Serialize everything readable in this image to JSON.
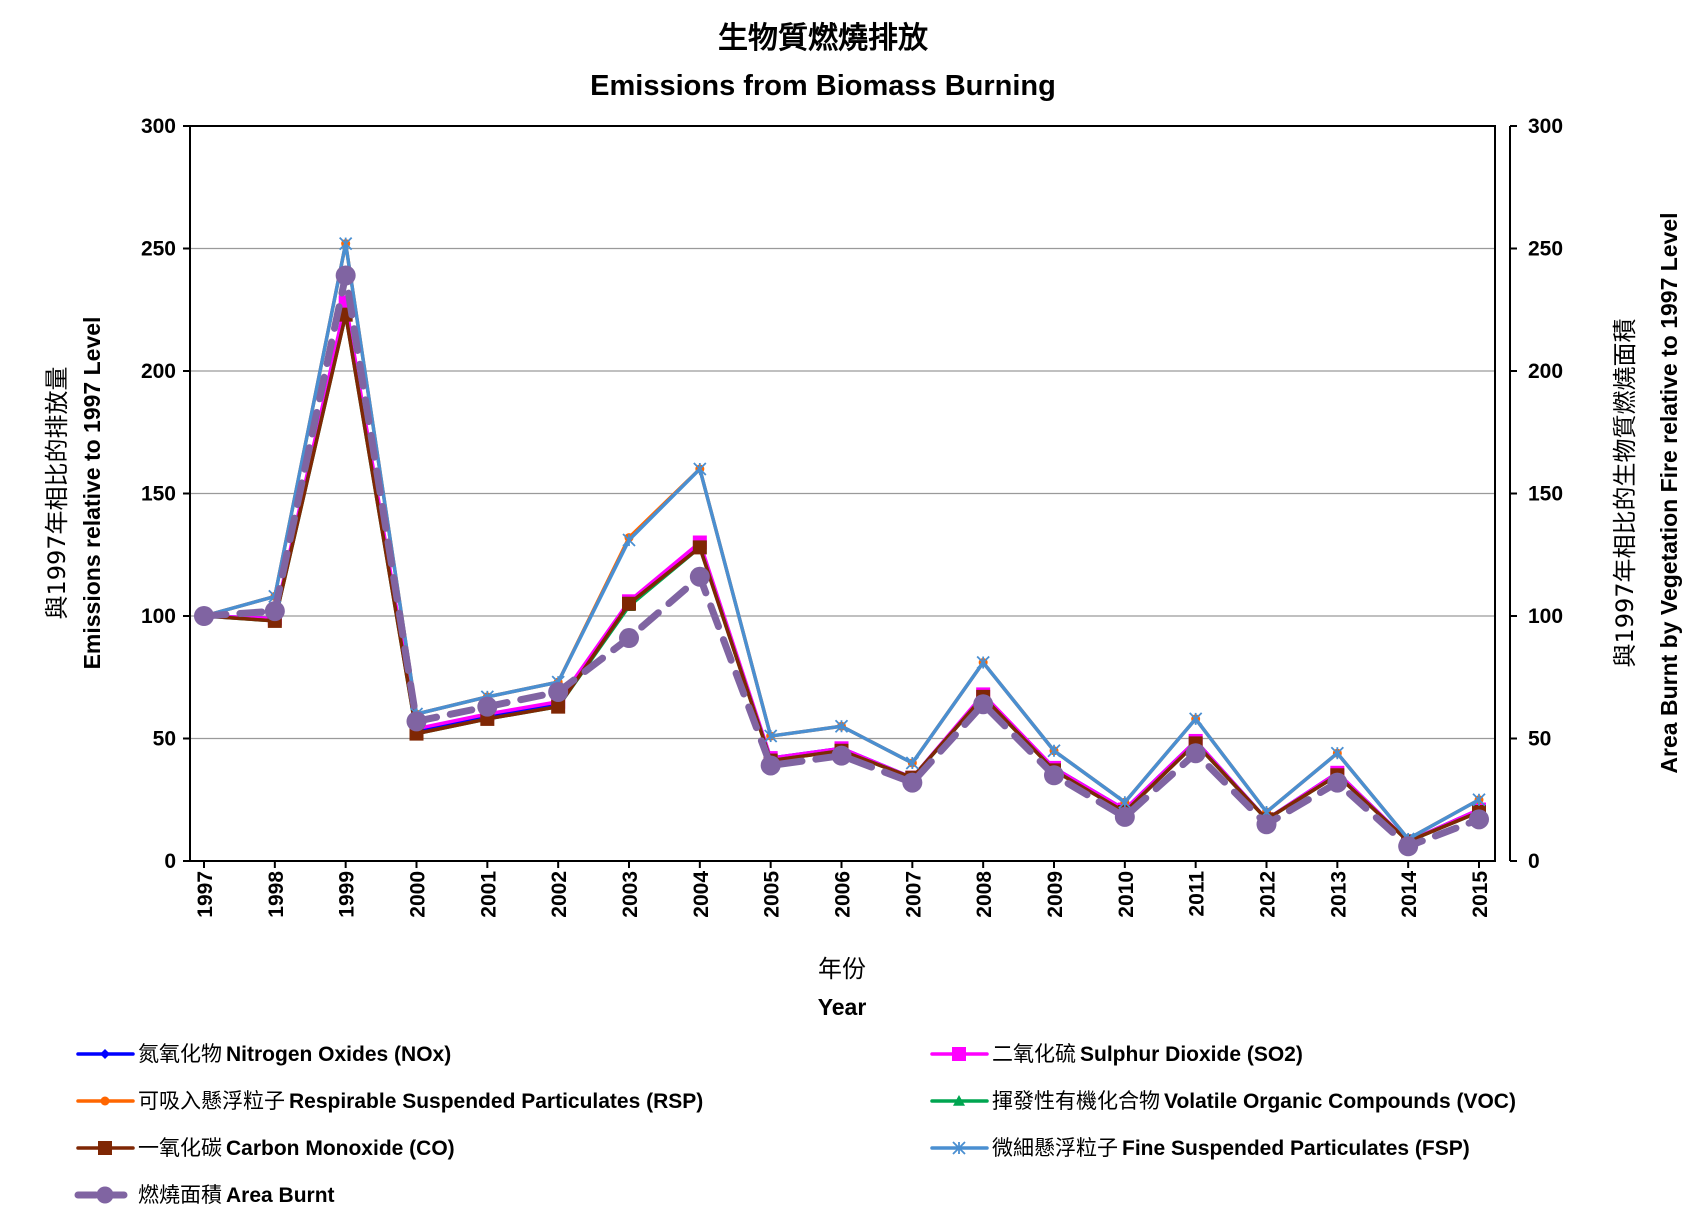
{
  "chart_data": {
    "type": "line",
    "title_zh": "生物質燃燒排放",
    "title_en": "Emissions from Biomass Burning",
    "xlabel_zh": "年份",
    "xlabel_en": "Year",
    "ylabel_left_zh": "與1997年相比的排放量",
    "ylabel_left_en": "Emissions relative to 1997 Level",
    "ylabel_right_zh": "與1997年相比的生物質燃燒面積",
    "ylabel_right_en": "Area Burnt by Vegetation Fire relative to 1997 Level",
    "ylim": [
      0,
      300
    ],
    "yticks": [
      0,
      50,
      100,
      150,
      200,
      250,
      300
    ],
    "grid": true,
    "legend_position": "bottom",
    "categories": [
      "1997",
      "1998",
      "1999",
      "2000",
      "2001",
      "2002",
      "2003",
      "2004",
      "2005",
      "2006",
      "2007",
      "2008",
      "2009",
      "2010",
      "2011",
      "2012",
      "2013",
      "2014",
      "2015"
    ],
    "series": [
      {
        "name_zh": "氮氧化物",
        "name_en": "Nitrogen Oxides (NOx)",
        "color": "#0000ff",
        "marker": "diamond",
        "dash": false,
        "values": [
          100,
          99,
          224,
          53,
          59,
          64,
          105,
          129,
          42,
          46,
          34,
          67,
          38,
          21,
          49,
          17,
          36,
          8,
          21
        ]
      },
      {
        "name_zh": "二氧化硫",
        "name_en": "Sulphur Dioxide (SO2)",
        "color": "#ff00ff",
        "marker": "square",
        "dash": false,
        "values": [
          100,
          99,
          228,
          54,
          60,
          65,
          106,
          130,
          42,
          46,
          34,
          68,
          38,
          21,
          49,
          17,
          36,
          8,
          21
        ]
      },
      {
        "name_zh": "可吸入懸浮粒子",
        "name_en": "Respirable Suspended Particulates (RSP)",
        "color": "#ff6600",
        "marker": "circle",
        "dash": false,
        "values": [
          100,
          108,
          252,
          60,
          67,
          73,
          132,
          160,
          51,
          55,
          40,
          81,
          45,
          24,
          58,
          20,
          44,
          9,
          25
        ]
      },
      {
        "name_zh": "揮發性有機化合物",
        "name_en": "Volatile Organic Compounds (VOC)",
        "color": "#00a550",
        "marker": "triangle",
        "dash": false,
        "values": [
          100,
          98,
          223,
          52,
          58,
          63,
          104,
          128,
          41,
          45,
          34,
          67,
          37,
          20,
          48,
          17,
          35,
          8,
          20
        ]
      },
      {
        "name_zh": "一氧化碳",
        "name_en": "Carbon Monoxide (CO)",
        "color": "#7f2704",
        "marker": "square",
        "dash": false,
        "values": [
          100,
          98,
          223,
          52,
          58,
          63,
          105,
          128,
          41,
          45,
          34,
          67,
          37,
          20,
          48,
          17,
          35,
          8,
          20
        ]
      },
      {
        "name_zh": "微細懸浮粒子",
        "name_en": "Fine Suspended Particulates (FSP)",
        "color": "#4a8fd1",
        "marker": "star",
        "dash": false,
        "values": [
          100,
          108,
          252,
          60,
          67,
          73,
          131,
          160,
          51,
          55,
          40,
          81,
          45,
          24,
          58,
          20,
          44,
          9,
          25
        ]
      },
      {
        "name_zh": "燃燒面積",
        "name_en": "Area Burnt",
        "color": "#8064a2",
        "marker": "bigcircle",
        "dash": true,
        "values": [
          100,
          102,
          239,
          57,
          63,
          69,
          91,
          116,
          39,
          43,
          32,
          64,
          35,
          18,
          44,
          15,
          32,
          6,
          17
        ]
      }
    ]
  }
}
